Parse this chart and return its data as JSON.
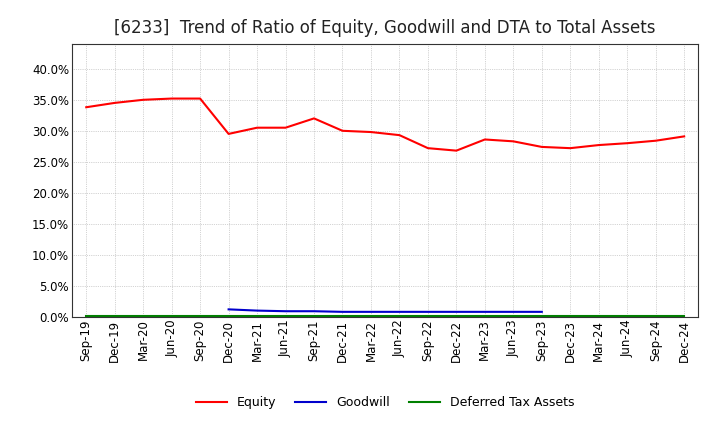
{
  "title": "[6233]  Trend of Ratio of Equity, Goodwill and DTA to Total Assets",
  "x_labels": [
    "Sep-19",
    "Dec-19",
    "Mar-20",
    "Jun-20",
    "Sep-20",
    "Dec-20",
    "Mar-21",
    "Jun-21",
    "Sep-21",
    "Dec-21",
    "Mar-22",
    "Jun-22",
    "Sep-22",
    "Dec-22",
    "Mar-23",
    "Jun-23",
    "Sep-23",
    "Dec-23",
    "Mar-24",
    "Jun-24",
    "Sep-24",
    "Dec-24"
  ],
  "equity": [
    0.338,
    0.345,
    0.35,
    0.352,
    0.352,
    0.295,
    0.305,
    0.305,
    0.32,
    0.3,
    0.298,
    0.293,
    0.272,
    0.268,
    0.286,
    0.283,
    0.274,
    0.272,
    0.277,
    0.28,
    0.284,
    0.291
  ],
  "goodwill": [
    null,
    null,
    null,
    null,
    null,
    0.012,
    0.01,
    0.009,
    0.009,
    0.008,
    0.008,
    0.008,
    0.008,
    0.008,
    0.008,
    0.008,
    0.008,
    null,
    null,
    null,
    null,
    null
  ],
  "dta": [
    0.001,
    0.001,
    0.001,
    0.001,
    0.001,
    0.001,
    0.001,
    0.001,
    0.001,
    0.001,
    0.001,
    0.001,
    0.001,
    0.001,
    0.001,
    0.001,
    0.001,
    0.001,
    0.001,
    0.001,
    0.001,
    0.001
  ],
  "equity_color": "#ff0000",
  "goodwill_color": "#0000cc",
  "dta_color": "#008000",
  "ylim": [
    0.0,
    0.44
  ],
  "yticks": [
    0.0,
    0.05,
    0.1,
    0.15,
    0.2,
    0.25,
    0.3,
    0.35,
    0.4
  ],
  "grid_color": "#aaaaaa",
  "background_color": "#ffffff",
  "title_fontsize": 12,
  "tick_fontsize": 8.5
}
